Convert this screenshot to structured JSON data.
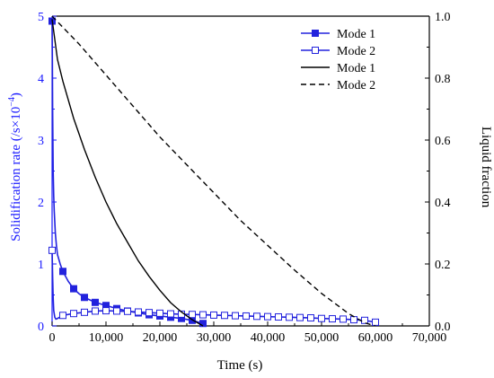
{
  "chart_data": {
    "type": "line",
    "xlabel": "Time (s)",
    "ylabel_left": "Solidification rate (/s×10",
    "ylabel_left_sup": "−4",
    "ylabel_left_close": ")",
    "ylabel_right": "Liquid fraction",
    "xlim": [
      0,
      70000
    ],
    "ylim_left": [
      0,
      5
    ],
    "ylim_right": [
      0,
      1
    ],
    "x_ticks": [
      0,
      10000,
      20000,
      30000,
      40000,
      50000,
      60000,
      70000
    ],
    "x_tick_labels": [
      "0",
      "10,000",
      "20,000",
      "30,000",
      "40,000",
      "50,000",
      "60,000",
      "70,000"
    ],
    "y_left_ticks": [
      0,
      1,
      2,
      3,
      4,
      5
    ],
    "y_left_tick_labels": [
      "0",
      "1",
      "2",
      "3",
      "4",
      "5"
    ],
    "y_right_ticks": [
      0,
      0.2,
      0.4,
      0.6,
      0.8,
      1.0
    ],
    "y_right_tick_labels": [
      "0.0",
      "0.2",
      "0.4",
      "0.6",
      "0.8",
      "1.0"
    ],
    "legend_position": "top-right",
    "grid": false,
    "left_axis_color": "#1a1aff",
    "series": [
      {
        "name": "Mode 1",
        "axis": "left",
        "style": "line-filled-square",
        "color": "#2222dd",
        "x": [
          0,
          50,
          100,
          200,
          300,
          400,
          600,
          800,
          1000,
          1500,
          2000,
          3000,
          4000,
          5000,
          6000,
          8000,
          10000,
          12000,
          14000,
          16000,
          18000,
          20000,
          22000,
          24000,
          26000,
          28000
        ],
        "y": [
          4.92,
          4.3,
          3.5,
          2.5,
          2.1,
          1.85,
          1.5,
          1.3,
          1.15,
          1.0,
          0.88,
          0.72,
          0.6,
          0.52,
          0.46,
          0.38,
          0.33,
          0.28,
          0.24,
          0.21,
          0.18,
          0.16,
          0.14,
          0.12,
          0.09,
          0.04
        ],
        "marker_x": [
          0,
          2000,
          4000,
          6000,
          8000,
          10000,
          12000,
          14000,
          16000,
          18000,
          20000,
          22000,
          24000,
          26000,
          28000
        ]
      },
      {
        "name": "Mode 2",
        "axis": "left",
        "style": "line-open-square",
        "color": "#2222dd",
        "x": [
          0,
          100,
          200,
          300,
          500,
          700,
          1000,
          2000,
          4000,
          6000,
          8000,
          10000,
          12000,
          14000,
          16000,
          18000,
          20000,
          22000,
          24000,
          26000,
          28000,
          30000,
          32000,
          34000,
          36000,
          38000,
          40000,
          42000,
          44000,
          46000,
          48000,
          50000,
          52000,
          54000,
          56000,
          58000,
          60000
        ],
        "y": [
          1.22,
          0.8,
          0.45,
          0.25,
          0.14,
          0.11,
          0.12,
          0.17,
          0.2,
          0.22,
          0.24,
          0.245,
          0.24,
          0.235,
          0.225,
          0.215,
          0.205,
          0.195,
          0.19,
          0.185,
          0.18,
          0.175,
          0.17,
          0.165,
          0.16,
          0.155,
          0.15,
          0.145,
          0.14,
          0.135,
          0.13,
          0.12,
          0.115,
          0.11,
          0.1,
          0.09,
          0.06
        ],
        "marker_x": [
          0,
          2000,
          4000,
          6000,
          8000,
          10000,
          12000,
          14000,
          16000,
          18000,
          20000,
          22000,
          24000,
          26000,
          28000,
          30000,
          32000,
          34000,
          36000,
          38000,
          40000,
          42000,
          44000,
          46000,
          48000,
          50000,
          52000,
          54000,
          56000,
          58000,
          60000
        ]
      },
      {
        "name": "Mode 1",
        "axis": "right",
        "style": "solid",
        "color": "#000000",
        "x": [
          0,
          1000,
          2000,
          4000,
          6000,
          8000,
          10000,
          12000,
          14000,
          16000,
          18000,
          20000,
          22000,
          24000,
          26000,
          27500,
          28000
        ],
        "y": [
          0.99,
          0.86,
          0.79,
          0.67,
          0.57,
          0.48,
          0.4,
          0.33,
          0.27,
          0.21,
          0.16,
          0.115,
          0.075,
          0.045,
          0.02,
          0.005,
          0.0
        ]
      },
      {
        "name": "Mode 2",
        "axis": "right",
        "style": "dashed",
        "color": "#000000",
        "x": [
          0,
          5000,
          10000,
          15000,
          20000,
          25000,
          30000,
          35000,
          40000,
          45000,
          50000,
          55000,
          58000,
          60000
        ],
        "y": [
          1.0,
          0.91,
          0.81,
          0.71,
          0.61,
          0.52,
          0.43,
          0.34,
          0.26,
          0.18,
          0.105,
          0.04,
          0.01,
          0.0
        ]
      }
    ]
  }
}
